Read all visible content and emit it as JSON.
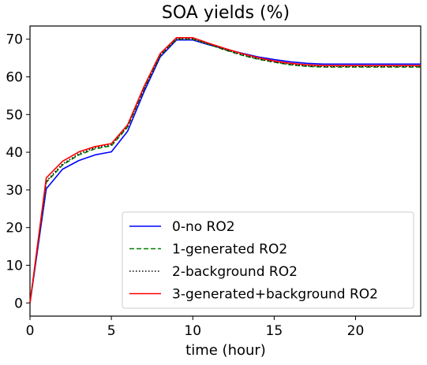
{
  "chart_data": {
    "type": "line",
    "title": "SOA yields (%)",
    "xlabel": "time (hour)",
    "ylabel": "",
    "xlim": [
      0,
      24
    ],
    "ylim": [
      -3.5,
      73.5
    ],
    "xticks": [
      0,
      5,
      10,
      15,
      20
    ],
    "yticks": [
      0,
      10,
      20,
      30,
      40,
      50,
      60,
      70
    ],
    "grid": false,
    "legend_position": "lower-right",
    "x": [
      0,
      1,
      2,
      3,
      4,
      5,
      6,
      7,
      8,
      9,
      10,
      11,
      12,
      13,
      14,
      15,
      16,
      17,
      18,
      19,
      20,
      21,
      22,
      23,
      24
    ],
    "series": [
      {
        "name": "0-no RO2",
        "color": "#0000ff",
        "dash": "solid",
        "values": [
          0,
          30.3,
          35.5,
          37.8,
          39.3,
          40.1,
          45.6,
          56.0,
          65.3,
          69.8,
          69.8,
          68.5,
          67.4,
          66.3,
          65.3,
          64.6,
          64.0,
          63.6,
          63.4,
          63.4,
          63.4,
          63.4,
          63.4,
          63.4,
          63.4
        ]
      },
      {
        "name": "1-generated RO2",
        "color": "#008000",
        "dash": "dashed",
        "values": [
          0,
          32.0,
          36.6,
          39.3,
          40.9,
          41.7,
          46.7,
          56.8,
          65.7,
          70.0,
          70.0,
          68.6,
          67.1,
          65.8,
          64.7,
          63.9,
          63.2,
          62.8,
          62.6,
          62.6,
          62.6,
          62.6,
          62.6,
          62.6,
          62.6
        ]
      },
      {
        "name": "2-background RO2",
        "color": "#000000",
        "dash": "dotted",
        "values": [
          0,
          32.3,
          36.9,
          39.6,
          41.2,
          42.0,
          46.9,
          56.9,
          65.8,
          70.1,
          70.1,
          68.7,
          67.2,
          65.9,
          64.8,
          64.0,
          63.3,
          62.9,
          62.8,
          62.8,
          62.8,
          62.8,
          62.8,
          62.8,
          62.8
        ]
      },
      {
        "name": "3-generated+background RO2",
        "color": "#ff0000",
        "dash": "solid",
        "values": [
          0,
          33.2,
          37.6,
          40.1,
          41.5,
          42.3,
          47.3,
          57.4,
          66.2,
          70.4,
          70.4,
          68.9,
          67.5,
          66.2,
          65.1,
          64.2,
          63.6,
          63.2,
          63.0,
          63.0,
          63.0,
          63.0,
          63.0,
          63.0,
          63.0
        ]
      }
    ]
  }
}
